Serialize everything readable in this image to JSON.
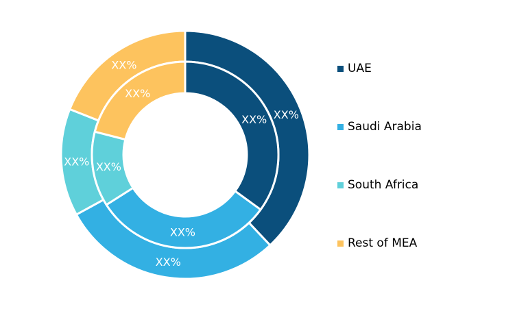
{
  "chart_data": {
    "type": "pie",
    "variant": "nested-donut",
    "categories": [
      "UAE",
      "Saudi Arabia",
      "South Africa",
      "Rest of MEA"
    ],
    "colors": [
      "#0b4f7c",
      "#33b0e3",
      "#5fd0da",
      "#fdc35e"
    ],
    "series": [
      {
        "ring": "outer",
        "values": [
          38,
          29,
          14,
          19
        ],
        "labels": [
          "XX%",
          "XX%",
          "XX%",
          "XX%"
        ]
      },
      {
        "ring": "inner",
        "values": [
          35,
          31,
          13,
          21
        ],
        "labels": [
          "XX%",
          "XX%",
          "XX%",
          "XX%"
        ]
      }
    ],
    "legend_position": "right"
  }
}
